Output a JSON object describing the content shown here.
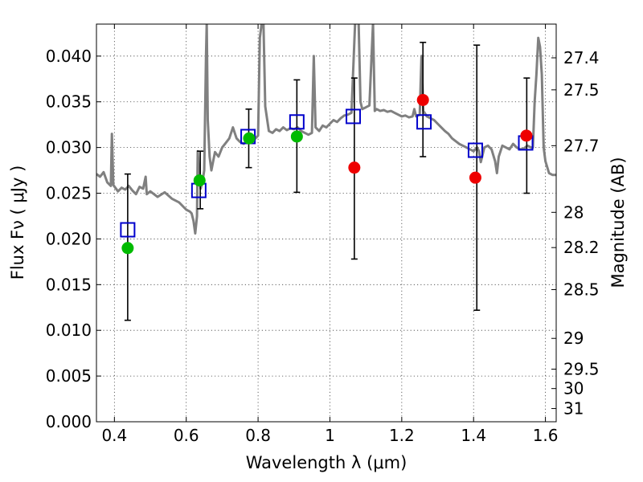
{
  "chart_data": {
    "type": "scatter",
    "title": "",
    "xlabel": "Wavelength  λ (μm)",
    "ylabel": "Flux  Fν  ( μJy )",
    "y2label": "Magnitude (AB)",
    "xlim": [
      0.35,
      1.63
    ],
    "ylim": [
      0.0,
      0.0435
    ],
    "grid": true,
    "x_ticks": [
      0.4,
      0.6,
      0.8,
      1.0,
      1.2,
      1.4,
      1.6
    ],
    "x_tick_labels": [
      "0.4",
      "0.6",
      "0.8",
      "1",
      "1.2",
      "1.4",
      "1.6"
    ],
    "y_ticks": [
      0.0,
      0.005,
      0.01,
      0.015,
      0.02,
      0.025,
      0.03,
      0.035,
      0.04
    ],
    "y_tick_labels": [
      "0.000",
      "0.005",
      "0.010",
      "0.015",
      "0.020",
      "0.025",
      "0.030",
      "0.035",
      "0.040"
    ],
    "mag_ticks": [
      {
        "mag": 27.4,
        "label": "27.4"
      },
      {
        "mag": 27.5,
        "label": "27.5"
      },
      {
        "mag": 27.7,
        "label": "27.7"
      },
      {
        "mag": 28.0,
        "label": "28"
      },
      {
        "mag": 28.2,
        "label": "28.2"
      },
      {
        "mag": 28.5,
        "label": "28.5"
      },
      {
        "mag": 29.0,
        "label": "29"
      },
      {
        "mag": 29.5,
        "label": "29.5"
      },
      {
        "mag": 30.0,
        "label": "30"
      },
      {
        "mag": 31.0,
        "label": "31"
      }
    ],
    "series": [
      {
        "marker": "line",
        "color": "#808080",
        "points": [
          [
            0.35,
            0.0271
          ],
          [
            0.36,
            0.0268
          ],
          [
            0.37,
            0.0273
          ],
          [
            0.38,
            0.0262
          ],
          [
            0.39,
            0.0258
          ],
          [
            0.393,
            0.0315
          ],
          [
            0.397,
            0.0259
          ],
          [
            0.41,
            0.0252
          ],
          [
            0.42,
            0.0256
          ],
          [
            0.43,
            0.0254
          ],
          [
            0.44,
            0.0258
          ],
          [
            0.45,
            0.0253
          ],
          [
            0.46,
            0.0249
          ],
          [
            0.47,
            0.0257
          ],
          [
            0.48,
            0.0255
          ],
          [
            0.487,
            0.0268
          ],
          [
            0.49,
            0.0249
          ],
          [
            0.5,
            0.0252
          ],
          [
            0.52,
            0.0246
          ],
          [
            0.54,
            0.0251
          ],
          [
            0.56,
            0.0244
          ],
          [
            0.58,
            0.024
          ],
          [
            0.6,
            0.0232
          ],
          [
            0.61,
            0.023
          ],
          [
            0.615,
            0.0228
          ],
          [
            0.62,
            0.022
          ],
          [
            0.625,
            0.0206
          ],
          [
            0.63,
            0.0225
          ],
          [
            0.632,
            0.0296
          ],
          [
            0.636,
            0.027
          ],
          [
            0.64,
            0.0255
          ],
          [
            0.645,
            0.0262
          ],
          [
            0.65,
            0.0275
          ],
          [
            0.655,
            0.04
          ],
          [
            0.657,
            0.0436
          ],
          [
            0.66,
            0.033
          ],
          [
            0.665,
            0.029
          ],
          [
            0.67,
            0.0275
          ],
          [
            0.675,
            0.0285
          ],
          [
            0.68,
            0.0295
          ],
          [
            0.69,
            0.029
          ],
          [
            0.7,
            0.03
          ],
          [
            0.71,
            0.0305
          ],
          [
            0.72,
            0.031
          ],
          [
            0.73,
            0.0322
          ],
          [
            0.74,
            0.031
          ],
          [
            0.75,
            0.0306
          ],
          [
            0.76,
            0.0304
          ],
          [
            0.77,
            0.0308
          ],
          [
            0.78,
            0.0311
          ],
          [
            0.79,
            0.0309
          ],
          [
            0.8,
            0.0313
          ],
          [
            0.805,
            0.042
          ],
          [
            0.81,
            0.0436
          ],
          [
            0.815,
            0.0436
          ],
          [
            0.82,
            0.0345
          ],
          [
            0.83,
            0.0318
          ],
          [
            0.84,
            0.0316
          ],
          [
            0.85,
            0.032
          ],
          [
            0.86,
            0.0318
          ],
          [
            0.87,
            0.0322
          ],
          [
            0.88,
            0.0319
          ],
          [
            0.89,
            0.0321
          ],
          [
            0.9,
            0.032
          ],
          [
            0.91,
            0.0322
          ],
          [
            0.92,
            0.0318
          ],
          [
            0.93,
            0.0316
          ],
          [
            0.94,
            0.0314
          ],
          [
            0.95,
            0.0316
          ],
          [
            0.955,
            0.04
          ],
          [
            0.96,
            0.0322
          ],
          [
            0.97,
            0.0318
          ],
          [
            0.98,
            0.0324
          ],
          [
            0.99,
            0.0322
          ],
          [
            1.0,
            0.0326
          ],
          [
            1.01,
            0.033
          ],
          [
            1.02,
            0.0328
          ],
          [
            1.03,
            0.0332
          ],
          [
            1.04,
            0.0335
          ],
          [
            1.05,
            0.0336
          ],
          [
            1.06,
            0.0338
          ],
          [
            1.07,
            0.0436
          ],
          [
            1.075,
            0.0436
          ],
          [
            1.08,
            0.0436
          ],
          [
            1.085,
            0.035
          ],
          [
            1.09,
            0.0342
          ],
          [
            1.1,
            0.0344
          ],
          [
            1.11,
            0.0346
          ],
          [
            1.12,
            0.0436
          ],
          [
            1.125,
            0.034
          ],
          [
            1.13,
            0.0342
          ],
          [
            1.14,
            0.034
          ],
          [
            1.15,
            0.0341
          ],
          [
            1.16,
            0.0339
          ],
          [
            1.17,
            0.034
          ],
          [
            1.18,
            0.0338
          ],
          [
            1.19,
            0.0336
          ],
          [
            1.2,
            0.0334
          ],
          [
            1.21,
            0.0335
          ],
          [
            1.22,
            0.0333
          ],
          [
            1.23,
            0.0334
          ],
          [
            1.235,
            0.0342
          ],
          [
            1.24,
            0.0334
          ],
          [
            1.25,
            0.0336
          ],
          [
            1.255,
            0.04
          ],
          [
            1.26,
            0.034
          ],
          [
            1.27,
            0.0334
          ],
          [
            1.28,
            0.0332
          ],
          [
            1.29,
            0.033
          ],
          [
            1.3,
            0.0326
          ],
          [
            1.31,
            0.0322
          ],
          [
            1.32,
            0.0318
          ],
          [
            1.33,
            0.0315
          ],
          [
            1.34,
            0.031
          ],
          [
            1.35,
            0.0307
          ],
          [
            1.36,
            0.0304
          ],
          [
            1.37,
            0.0302
          ],
          [
            1.38,
            0.03
          ],
          [
            1.39,
            0.0298
          ],
          [
            1.4,
            0.0296
          ],
          [
            1.41,
            0.03
          ],
          [
            1.415,
            0.0296
          ],
          [
            1.42,
            0.0284
          ],
          [
            1.43,
            0.03
          ],
          [
            1.44,
            0.0302
          ],
          [
            1.45,
            0.0298
          ],
          [
            1.46,
            0.0285
          ],
          [
            1.465,
            0.0272
          ],
          [
            1.47,
            0.029
          ],
          [
            1.48,
            0.0302
          ],
          [
            1.49,
            0.03
          ],
          [
            1.5,
            0.0298
          ],
          [
            1.51,
            0.0304
          ],
          [
            1.52,
            0.03
          ],
          [
            1.53,
            0.0298
          ],
          [
            1.54,
            0.0299
          ],
          [
            1.55,
            0.0302
          ],
          [
            1.56,
            0.03
          ],
          [
            1.565,
            0.03
          ],
          [
            1.57,
            0.035
          ],
          [
            1.575,
            0.038
          ],
          [
            1.58,
            0.042
          ],
          [
            1.585,
            0.041
          ],
          [
            1.59,
            0.038
          ],
          [
            1.595,
            0.03
          ],
          [
            1.6,
            0.0285
          ],
          [
            1.61,
            0.0272
          ],
          [
            1.62,
            0.027
          ],
          [
            1.63,
            0.027
          ]
        ]
      },
      {
        "marker": "open-square",
        "color": "#0000cc",
        "points": [
          [
            0.437,
            0.021
          ],
          [
            0.635,
            0.0253
          ],
          [
            0.772,
            0.0312
          ],
          [
            0.908,
            0.0328
          ],
          [
            1.065,
            0.0334
          ],
          [
            1.262,
            0.0328
          ],
          [
            1.405,
            0.0297
          ],
          [
            1.545,
            0.0305
          ]
        ]
      },
      {
        "marker": "circle",
        "color": "#00bb00",
        "points": [
          [
            0.437,
            0.019
          ],
          [
            0.637,
            0.0264
          ],
          [
            0.775,
            0.031
          ],
          [
            0.908,
            0.0312
          ]
        ]
      },
      {
        "marker": "circle",
        "color": "#ee0000",
        "points": [
          [
            1.068,
            0.0278
          ],
          [
            1.259,
            0.0352
          ],
          [
            1.405,
            0.0267
          ],
          [
            1.547,
            0.0313
          ]
        ]
      },
      {
        "marker": "errorbar",
        "color": "#000000",
        "points": [
          {
            "x": 0.437,
            "lo": 0.0111,
            "hi": 0.0271
          },
          {
            "x": 0.639,
            "lo": 0.0233,
            "hi": 0.0296
          },
          {
            "x": 0.774,
            "lo": 0.0278,
            "hi": 0.0342
          },
          {
            "x": 0.908,
            "lo": 0.0251,
            "hi": 0.0374
          },
          {
            "x": 1.068,
            "lo": 0.0178,
            "hi": 0.0376
          },
          {
            "x": 1.259,
            "lo": 0.029,
            "hi": 0.0415
          },
          {
            "x": 1.409,
            "lo": 0.0122,
            "hi": 0.0412
          },
          {
            "x": 1.548,
            "lo": 0.025,
            "hi": 0.0376
          }
        ]
      }
    ]
  }
}
